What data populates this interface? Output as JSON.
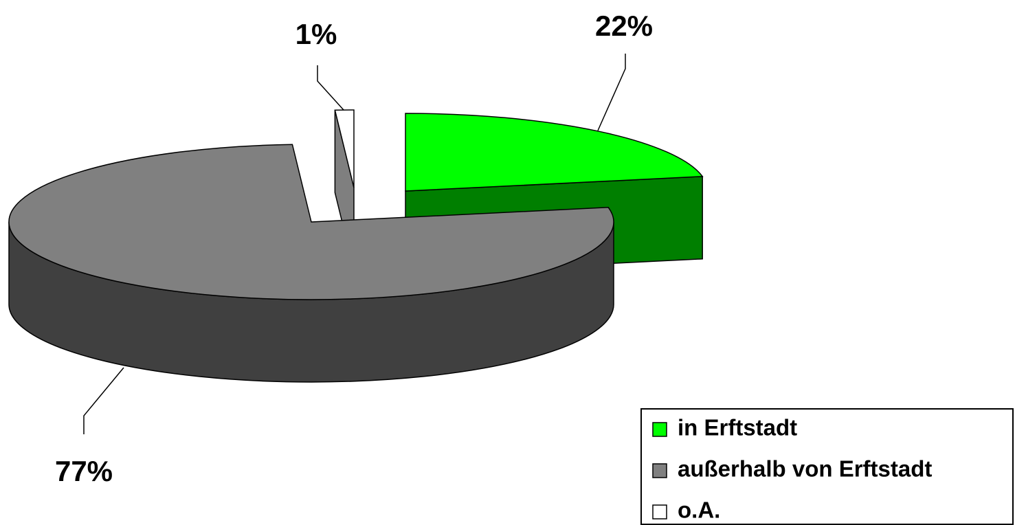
{
  "chart_data": {
    "type": "pie",
    "categories": [
      "in Erftstadt",
      "außerhalb von Erftstadt",
      "o.A."
    ],
    "values": [
      22,
      77,
      1
    ],
    "value_labels": [
      "22%",
      "77%",
      "1%"
    ],
    "colors": [
      "#00ff00",
      "#808080",
      "#ffffff"
    ]
  }
}
